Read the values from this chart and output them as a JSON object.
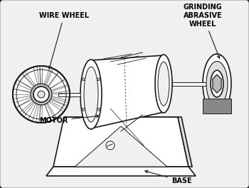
{
  "bg_color": "#f0f0f0",
  "border_color": "#222222",
  "line_color": "#1a1a1a",
  "white": "#ffffff",
  "gray_light": "#e0e0e0",
  "gray_med": "#bbbbbb",
  "gray_dark": "#888888",
  "labels": {
    "wire_wheel": "WIRE WHEEL",
    "grinding_line1": "GRINDING",
    "grinding_line2": "ABRASIVE",
    "grinding_line3": "WHEEL",
    "motor": "MOTOR",
    "base": "BASE"
  },
  "label_fontsize": 7.0,
  "label_fontweight": "bold",
  "label_fontfamily": "sans-serif"
}
